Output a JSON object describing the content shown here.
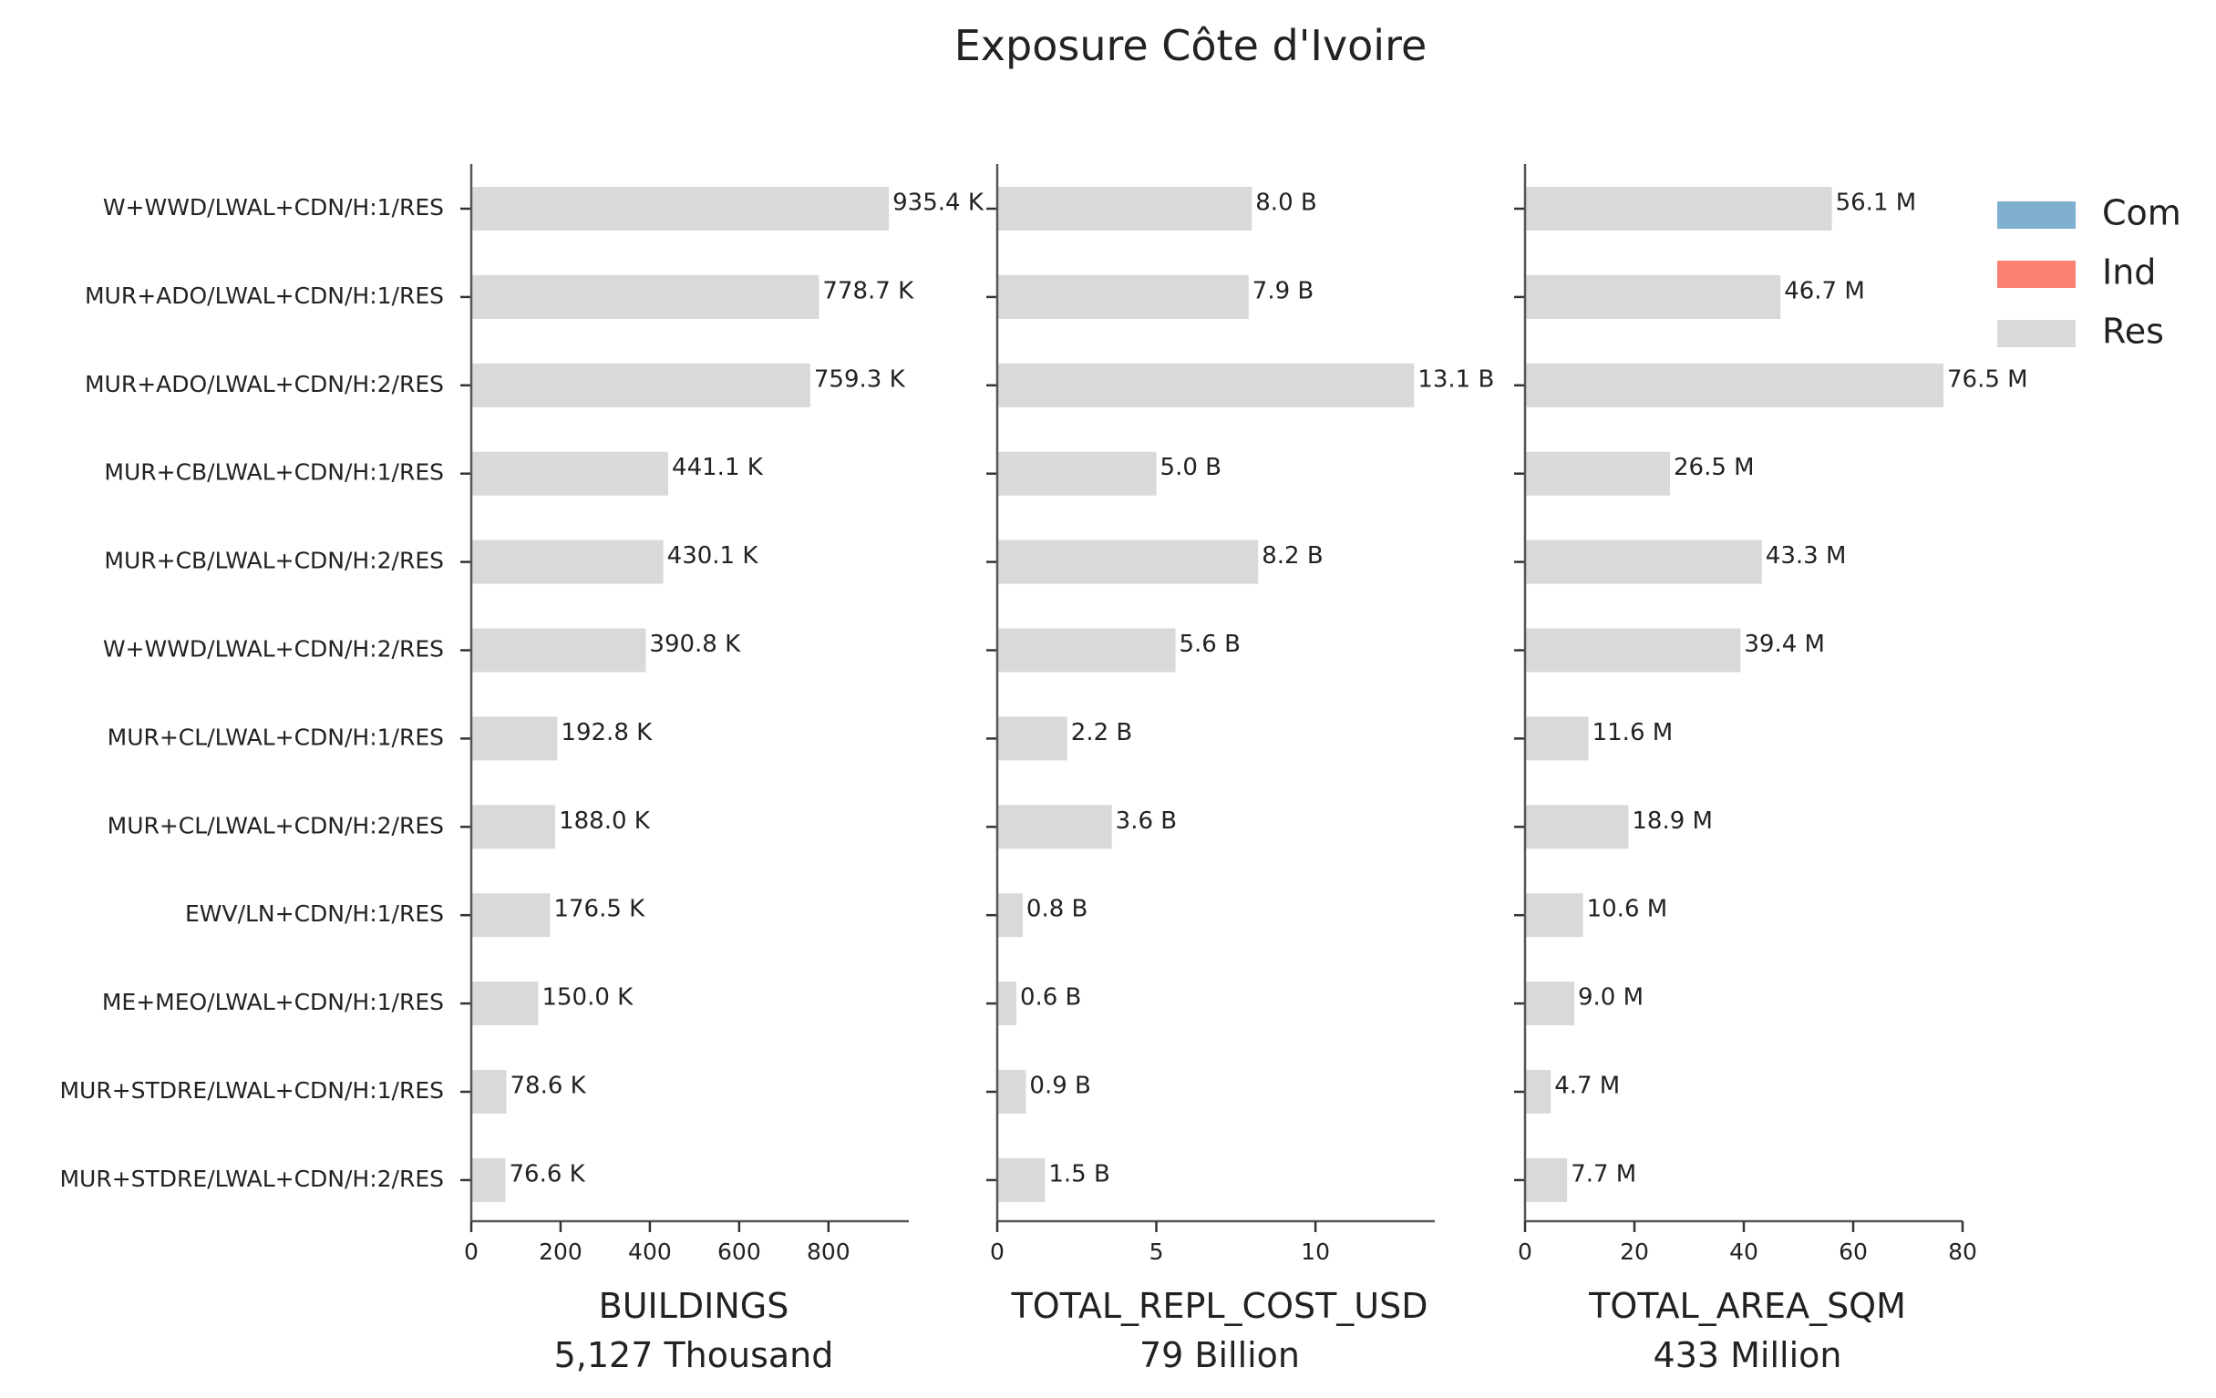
{
  "chart_data": {
    "type": "bar",
    "orientation": "horizontal",
    "title": "Exposure Côte d'Ivoire",
    "categories": [
      "W+WWD/LWAL+CDN/H:1/RES",
      "MUR+ADO/LWAL+CDN/H:1/RES",
      "MUR+ADO/LWAL+CDN/H:2/RES",
      "MUR+CB/LWAL+CDN/H:1/RES",
      "MUR+CB/LWAL+CDN/H:2/RES",
      "W+WWD/LWAL+CDN/H:2/RES",
      "MUR+CL/LWAL+CDN/H:1/RES",
      "MUR+CL/LWAL+CDN/H:2/RES",
      "EWV/LN+CDN/H:1/RES",
      "ME+MEO/LWAL+CDN/H:1/RES",
      "MUR+STDRE/LWAL+CDN/H:1/RES",
      "MUR+STDRE/LWAL+CDN/H:2/RES"
    ],
    "legend": {
      "placement": "top-right",
      "entries": [
        {
          "name": "Com",
          "color": "#7fb0d0"
        },
        {
          "name": "Ind",
          "color": "#f98273"
        },
        {
          "name": "Res",
          "color": "#d9d9d9"
        }
      ]
    },
    "grid": false,
    "panels": [
      {
        "xlabel": "BUILDINGS",
        "xlabel_total": "5,127 Thousand",
        "xlim": [
          0,
          980
        ],
        "xticks": [
          0,
          200,
          400,
          600,
          800
        ],
        "series": [
          {
            "name": "Res",
            "color": "#d9d9d9",
            "values": [
              935.4,
              778.7,
              759.3,
              441.1,
              430.1,
              390.8,
              192.8,
              188.0,
              176.5,
              150.0,
              78.6,
              76.6
            ]
          }
        ],
        "data_labels": [
          "935.4 K",
          "778.7 K",
          "759.3 K",
          "441.1 K",
          "430.1 K",
          "390.8 K",
          "192.8 K",
          "188.0 K",
          "176.5 K",
          "150.0 K",
          "78.6 K",
          "76.6 K"
        ]
      },
      {
        "xlabel": "TOTAL_REPL_COST_USD",
        "xlabel_total": "79 Billion",
        "xlim": [
          0,
          13.75
        ],
        "xticks": [
          0,
          5,
          10
        ],
        "series": [
          {
            "name": "Res",
            "color": "#d9d9d9",
            "values": [
              8.0,
              7.9,
              13.1,
              5.0,
              8.2,
              5.6,
              2.2,
              3.6,
              0.8,
              0.6,
              0.9,
              1.5
            ]
          }
        ],
        "data_labels": [
          "8.0 B",
          "7.9 B",
          "13.1 B",
          "5.0 B",
          "8.2 B",
          "5.6 B",
          "2.2 B",
          "3.6 B",
          "0.8 B",
          "0.6 B",
          "0.9 B",
          "1.5 B"
        ]
      },
      {
        "xlabel": "TOTAL_AREA_SQM",
        "xlabel_total": "433 Million",
        "xlim": [
          0,
          80
        ],
        "xticks": [
          0,
          20,
          40,
          60,
          80
        ],
        "series": [
          {
            "name": "Res",
            "color": "#d9d9d9",
            "values": [
              56.1,
              46.7,
              76.5,
              26.5,
              43.3,
              39.4,
              11.6,
              18.9,
              10.6,
              9.0,
              4.7,
              7.7
            ]
          }
        ],
        "data_labels": [
          "56.1 M",
          "46.7 M",
          "76.5 M",
          "26.5 M",
          "43.3 M",
          "39.4 M",
          "11.6 M",
          "18.9 M",
          "10.6 M",
          "9.0 M",
          "4.7 M",
          "7.7 M"
        ]
      }
    ]
  }
}
